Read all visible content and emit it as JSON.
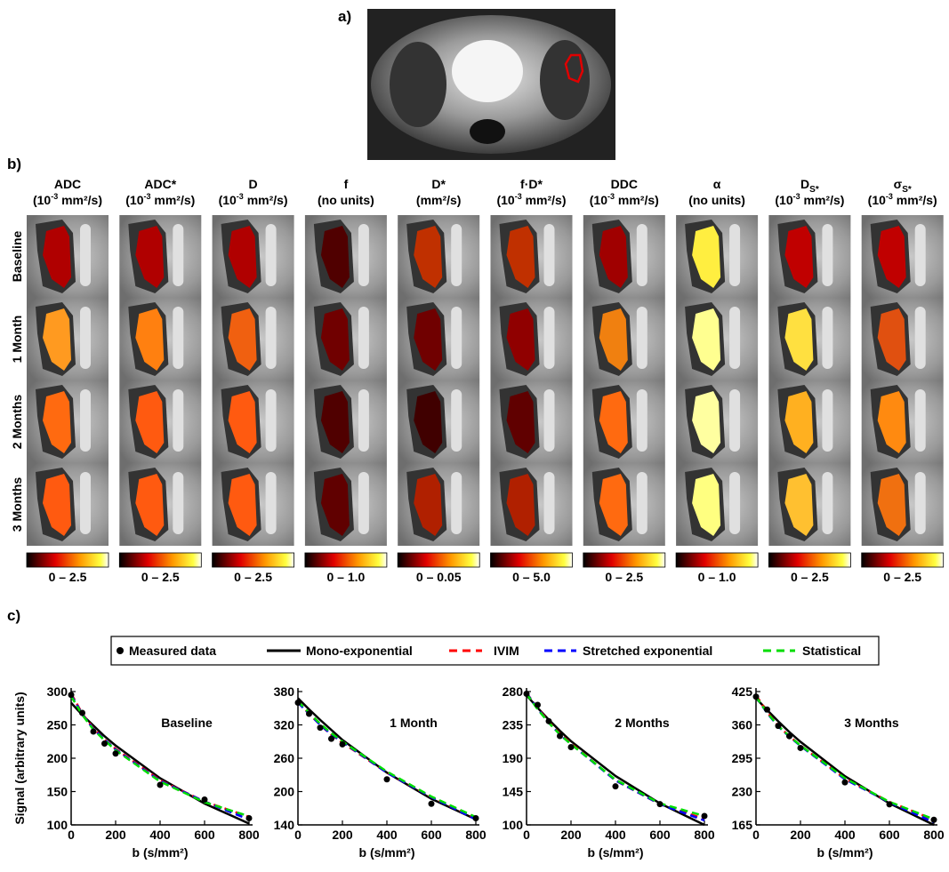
{
  "panel_a": {
    "label": "a)"
  },
  "panel_b": {
    "label": "b)",
    "columns": [
      {
        "name": "ADC",
        "unit_pre": "(10",
        "unit_sup": "-3",
        "unit_post": " mm²/s)",
        "range": "0 – 2.5"
      },
      {
        "name": "ADC*",
        "unit_pre": "(10",
        "unit_sup": "-3",
        "unit_post": " mm²/s)",
        "range": "0 – 2.5"
      },
      {
        "name": "D",
        "unit_pre": "(10",
        "unit_sup": "-3",
        "unit_post": " mm²/s)",
        "range": "0 – 2.5"
      },
      {
        "name": "f",
        "unit_pre": "(no units)",
        "range": "0 – 1.0"
      },
      {
        "name": "D*",
        "unit_pre": "(mm²/s)",
        "range": "0 – 0.05"
      },
      {
        "name": "f·D*",
        "unit_pre": "(10",
        "unit_sup": "-3",
        "unit_post": " mm²/s)",
        "range": "0 – 5.0"
      },
      {
        "name": "DDC",
        "unit_pre": "(10",
        "unit_sup": "-3",
        "unit_post": " mm²/s)",
        "range": "0 – 2.5"
      },
      {
        "name": "α",
        "unit_pre": "(no units)",
        "range": "0 – 1.0"
      },
      {
        "name": "D",
        "name_sub": "S*",
        "unit_pre": "(10",
        "unit_sup": "-3",
        "unit_post": " mm²/s)",
        "range": "0 – 2.5"
      },
      {
        "name": "σ",
        "name_sub": "S*",
        "unit_pre": "(10",
        "unit_sup": "-3",
        "unit_post": " mm²/s)",
        "range": "0 – 2.5"
      }
    ],
    "rows": [
      "Baseline",
      "1 Month",
      "2 Months",
      "3 Months"
    ]
  },
  "panel_c": {
    "label": "c)"
  },
  "chart_data": [
    {
      "type": "line",
      "title": "Baseline",
      "xlabel": "b (s/mm²)",
      "ylabel": "Signal (arbitrary units)",
      "x": [
        0,
        50,
        100,
        150,
        200,
        400,
        600,
        800
      ],
      "xlim": [
        0,
        800
      ],
      "xticks": [
        0,
        200,
        400,
        600,
        800
      ],
      "ylim": [
        100,
        300
      ],
      "yticks": [
        100,
        150,
        200,
        250,
        300
      ],
      "series": [
        {
          "name": "Measured data",
          "color": "#000000",
          "marker": true,
          "values": [
            295,
            268,
            240,
            222,
            207,
            160,
            138,
            110
          ]
        },
        {
          "name": "Mono-exponential",
          "color": "#000000",
          "dashed": false,
          "values": [
            283,
            265,
            249,
            233,
            219,
            170,
            132,
            102
          ]
        },
        {
          "name": "IVIM",
          "color": "#ff0000",
          "dashed": true,
          "values": [
            297,
            267,
            245,
            228,
            214,
            167,
            135,
            112
          ]
        },
        {
          "name": "Stretched exponential",
          "color": "#0000ff",
          "dashed": true,
          "values": [
            295,
            266,
            244,
            228,
            213,
            166,
            135,
            108
          ]
        },
        {
          "name": "Statistical",
          "color": "#00dd00",
          "dashed": true,
          "values": [
            293,
            265,
            243,
            227,
            212,
            165,
            134,
            113
          ]
        }
      ]
    },
    {
      "type": "line",
      "title": "1 Month",
      "xlabel": "b (s/mm²)",
      "x": [
        0,
        50,
        100,
        150,
        200,
        400,
        600,
        800
      ],
      "xlim": [
        0,
        800
      ],
      "xticks": [
        0,
        200,
        400,
        600,
        800
      ],
      "ylim": [
        140,
        380
      ],
      "yticks": [
        140,
        200,
        260,
        320,
        380
      ],
      "series": [
        {
          "color": "#000000",
          "marker": true,
          "values": [
            360,
            340,
            315,
            295,
            285,
            222,
            178,
            152
          ]
        },
        {
          "color": "#000000",
          "dashed": false,
          "values": [
            368,
            348,
            329,
            311,
            293,
            234,
            187,
            150
          ]
        },
        {
          "color": "#ff0000",
          "dashed": true,
          "values": [
            362,
            340,
            320,
            302,
            288,
            234,
            190,
            152
          ]
        },
        {
          "color": "#0000ff",
          "dashed": true,
          "values": [
            360,
            340,
            320,
            303,
            289,
            234,
            190,
            150
          ]
        },
        {
          "color": "#00dd00",
          "dashed": true,
          "values": [
            362,
            342,
            322,
            305,
            290,
            236,
            191,
            154
          ]
        }
      ]
    },
    {
      "type": "line",
      "title": "2 Months",
      "xlabel": "b (s/mm²)",
      "x": [
        0,
        50,
        100,
        150,
        200,
        400,
        600,
        800
      ],
      "xlim": [
        0,
        800
      ],
      "xticks": [
        0,
        200,
        400,
        600,
        800
      ],
      "ylim": [
        100,
        280
      ],
      "yticks": [
        100,
        145,
        190,
        235,
        280
      ],
      "series": [
        {
          "color": "#000000",
          "marker": true,
          "values": [
            277,
            262,
            240,
            220,
            205,
            152,
            128,
            112
          ]
        },
        {
          "color": "#000000",
          "dashed": false,
          "values": [
            275,
            258,
            242,
            227,
            213,
            166,
            129,
            100
          ]
        },
        {
          "color": "#ff0000",
          "dashed": true,
          "values": [
            278,
            258,
            239,
            223,
            210,
            160,
            128,
            108
          ]
        },
        {
          "color": "#0000ff",
          "dashed": true,
          "values": [
            278,
            257,
            238,
            222,
            209,
            160,
            128,
            106
          ]
        },
        {
          "color": "#00dd00",
          "dashed": true,
          "values": [
            277,
            256,
            238,
            222,
            209,
            161,
            129,
            112
          ]
        }
      ]
    },
    {
      "type": "line",
      "title": "3 Months",
      "xlabel": "b (s/mm²)",
      "x": [
        0,
        50,
        100,
        150,
        200,
        400,
        600,
        800
      ],
      "xlim": [
        0,
        800
      ],
      "xticks": [
        0,
        200,
        400,
        600,
        800
      ],
      "ylim": [
        165,
        425
      ],
      "yticks": [
        165,
        230,
        295,
        360,
        425
      ],
      "series": [
        {
          "color": "#000000",
          "marker": true,
          "values": [
            415,
            390,
            358,
            338,
            315,
            248,
            205,
            175
          ]
        },
        {
          "color": "#000000",
          "dashed": false,
          "values": [
            412,
            389,
            367,
            346,
            327,
            260,
            207,
            165
          ]
        },
        {
          "color": "#ff0000",
          "dashed": true,
          "values": [
            418,
            385,
            358,
            338,
            320,
            255,
            210,
            175
          ]
        },
        {
          "color": "#0000ff",
          "dashed": true,
          "values": [
            415,
            383,
            357,
            337,
            319,
            254,
            209,
            170
          ]
        },
        {
          "color": "#00dd00",
          "dashed": true,
          "values": [
            415,
            384,
            358,
            338,
            320,
            256,
            210,
            176
          ]
        }
      ]
    }
  ]
}
